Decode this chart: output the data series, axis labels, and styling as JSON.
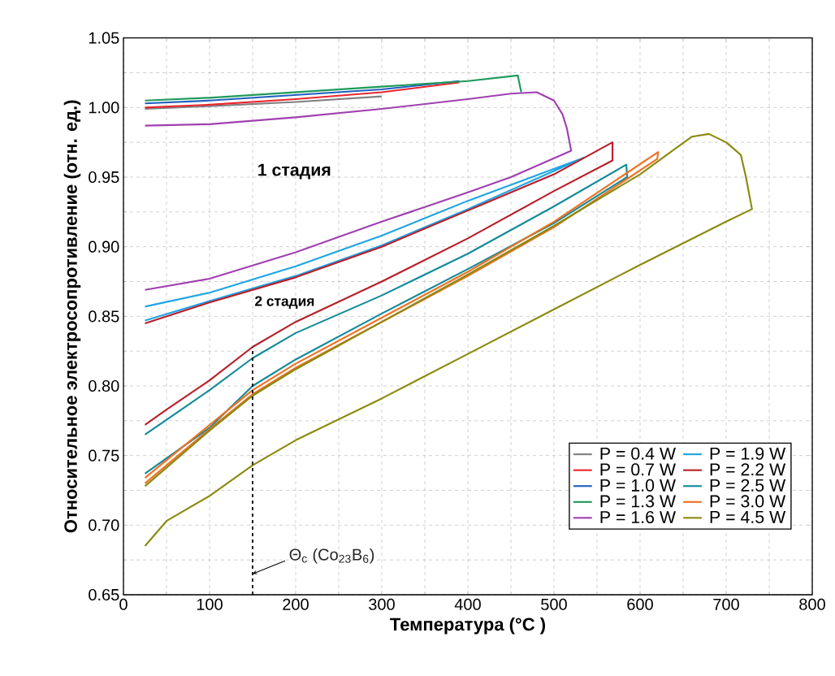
{
  "chart_data": {
    "type": "line",
    "xlabel": "Температура (°C )",
    "ylabel": "Относительное электросопротивление (отн. ед.)",
    "xlim": [
      0,
      800
    ],
    "ylim": [
      0.65,
      1.05
    ],
    "xticks": [
      0,
      100,
      200,
      300,
      400,
      500,
      600,
      700,
      800
    ],
    "yticks": [
      {
        "value": 0.65,
        "label": "0.65"
      },
      {
        "value": 0.7,
        "label": "0.70"
      },
      {
        "value": 0.75,
        "label": "0.75"
      },
      {
        "value": 0.8,
        "label": "0.80"
      },
      {
        "value": 0.85,
        "label": "0.85"
      },
      {
        "value": 0.9,
        "label": "0.90"
      },
      {
        "value": 0.95,
        "label": "0.95"
      },
      {
        "value": 1.0,
        "label": "1.00"
      },
      {
        "value": 1.05,
        "label": "1.05"
      }
    ],
    "grid": true,
    "legend": "bottom right",
    "marker": "none",
    "series": [
      {
        "name": "P = 0.4 W",
        "color": "#808080",
        "x": [
          25,
          100,
          200,
          300
        ],
        "values": [
          0.999,
          1.001,
          1.004,
          1.008
        ]
      },
      {
        "name": "P = 0.7 W",
        "color": "#e8262c",
        "x": [
          25,
          100,
          200,
          300,
          390
        ],
        "values": [
          1.0,
          1.002,
          1.006,
          1.011,
          1.018
        ]
      },
      {
        "name": "P = 1.0 W",
        "color": "#1f5fbf",
        "x": [
          25,
          100,
          200,
          300,
          390
        ],
        "values": [
          1.003,
          1.005,
          1.009,
          1.013,
          1.019
        ]
      },
      {
        "name": "P = 1.3 W",
        "color": "#1f9a5a",
        "x": [
          25,
          100,
          200,
          300,
          400,
          458,
          462
        ],
        "values": [
          1.005,
          1.007,
          1.011,
          1.015,
          1.019,
          1.023,
          1.011
        ]
      },
      {
        "name": "P = 1.6 W",
        "color": "#a040b0",
        "x": [
          25,
          100,
          200,
          300,
          400,
          450,
          480,
          500,
          510,
          515,
          520,
          450,
          400,
          300,
          200,
          100,
          25
        ],
        "values": [
          0.987,
          0.988,
          0.993,
          0.999,
          1.006,
          1.01,
          1.011,
          1.005,
          0.995,
          0.985,
          0.969,
          0.95,
          0.939,
          0.918,
          0.896,
          0.877,
          0.869
        ]
      },
      {
        "name": "P = 1.9 W",
        "color": "#1ea5e6",
        "x": [
          25,
          100,
          200,
          300,
          400,
          535,
          400,
          300,
          200,
          100,
          25
        ],
        "values": [
          0.857,
          0.867,
          0.886,
          0.908,
          0.933,
          0.964,
          0.927,
          0.901,
          0.879,
          0.861,
          0.847
        ]
      },
      {
        "name": "P = 2.2 W",
        "color": "#b81f2a",
        "x": [
          25,
          100,
          200,
          300,
          400,
          500,
          568,
          568,
          500,
          400,
          300,
          200,
          150,
          100,
          50,
          25
        ],
        "values": [
          0.845,
          0.86,
          0.878,
          0.9,
          0.926,
          0.952,
          0.975,
          0.962,
          0.94,
          0.906,
          0.875,
          0.846,
          0.828,
          0.804,
          0.783,
          0.772
        ]
      },
      {
        "name": "P = 2.5 W",
        "color": "#138a9a",
        "x": [
          25,
          100,
          150,
          200,
          300,
          400,
          500,
          584,
          585,
          500,
          400,
          300,
          200,
          150,
          100,
          25
        ],
        "values": [
          0.765,
          0.797,
          0.82,
          0.838,
          0.865,
          0.895,
          0.929,
          0.959,
          0.95,
          0.917,
          0.884,
          0.852,
          0.819,
          0.8,
          0.77,
          0.737
        ]
      },
      {
        "name": "P = 3.0 W",
        "color": "#f07020",
        "x": [
          25,
          100,
          150,
          200,
          300,
          400,
          500,
          621,
          620,
          500,
          400,
          300,
          200,
          150,
          100,
          25
        ],
        "values": [
          0.734,
          0.772,
          0.797,
          0.816,
          0.849,
          0.882,
          0.918,
          0.968,
          0.963,
          0.914,
          0.879,
          0.846,
          0.813,
          0.794,
          0.769,
          0.73
        ]
      },
      {
        "name": "P = 4.5 W",
        "color": "#8a8a10",
        "x": [
          25,
          100,
          150,
          200,
          300,
          400,
          500,
          600,
          640,
          660,
          680,
          700,
          717,
          723,
          730,
          700,
          600,
          500,
          400,
          300,
          200,
          150,
          100,
          50,
          25
        ],
        "values": [
          0.728,
          0.768,
          0.793,
          0.812,
          0.846,
          0.88,
          0.915,
          0.952,
          0.97,
          0.979,
          0.981,
          0.975,
          0.966,
          0.95,
          0.927,
          0.918,
          0.887,
          0.855,
          0.823,
          0.791,
          0.761,
          0.743,
          0.721,
          0.703,
          0.685
        ]
      },
      {
        "type": "line",
        "color": "#000000",
        "line_style": "dashed",
        "x": [
          150,
          150
        ],
        "values": [
          0.65,
          0.828
        ]
      }
    ],
    "annotations": [
      "1 стадия",
      "2 стадия",
      {
        "text": "Θ$_{c}$ (Co$_{23}$B$_{6}$)",
        "x": 150,
        "y": 0.665
      }
    ]
  }
}
